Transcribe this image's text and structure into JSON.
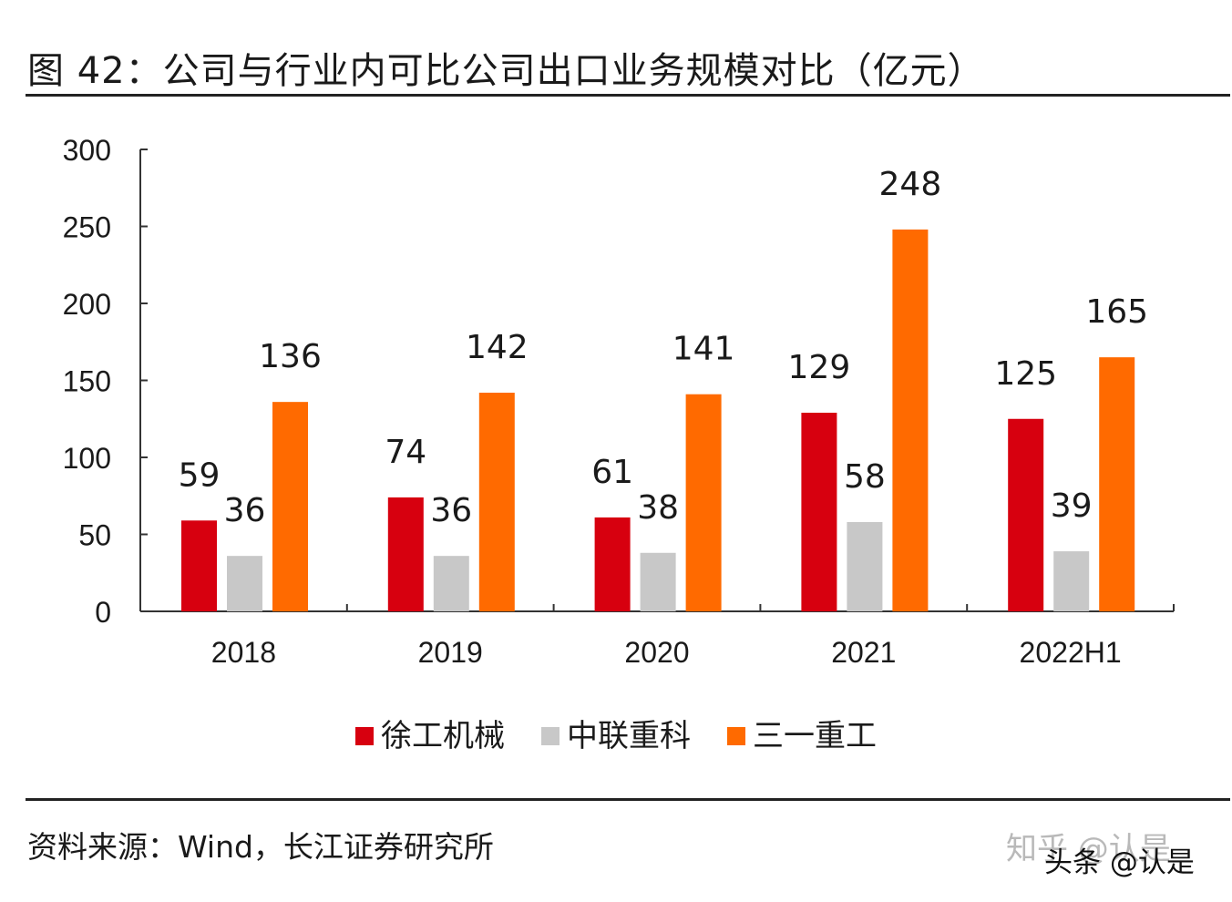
{
  "title": "图 42：公司与行业内可比公司出口业务规模对比（亿元）",
  "source_text": "资料来源：Wind，长江证券研究所",
  "watermark": {
    "primary": "知乎 @认是",
    "secondary": "头条 @认是"
  },
  "chart_data": {
    "type": "bar",
    "categories": [
      "2018",
      "2019",
      "2020",
      "2021",
      "2022H1"
    ],
    "series": [
      {
        "name": "徐工机械",
        "color": "#d7000f",
        "values": [
          59,
          74,
          61,
          129,
          125
        ]
      },
      {
        "name": "中联重科",
        "color": "#c8c8c8",
        "values": [
          36,
          36,
          38,
          58,
          39
        ]
      },
      {
        "name": "三一重工",
        "color": "#ff6a00",
        "values": [
          136,
          142,
          141,
          248,
          165
        ]
      }
    ],
    "ylim": [
      0,
      300
    ],
    "yticks": [
      "0",
      "50",
      "100",
      "150",
      "200",
      "250",
      "300"
    ],
    "xlabel": "",
    "ylabel": "",
    "grid": false,
    "legend_position": "bottom",
    "data_labels": true
  }
}
